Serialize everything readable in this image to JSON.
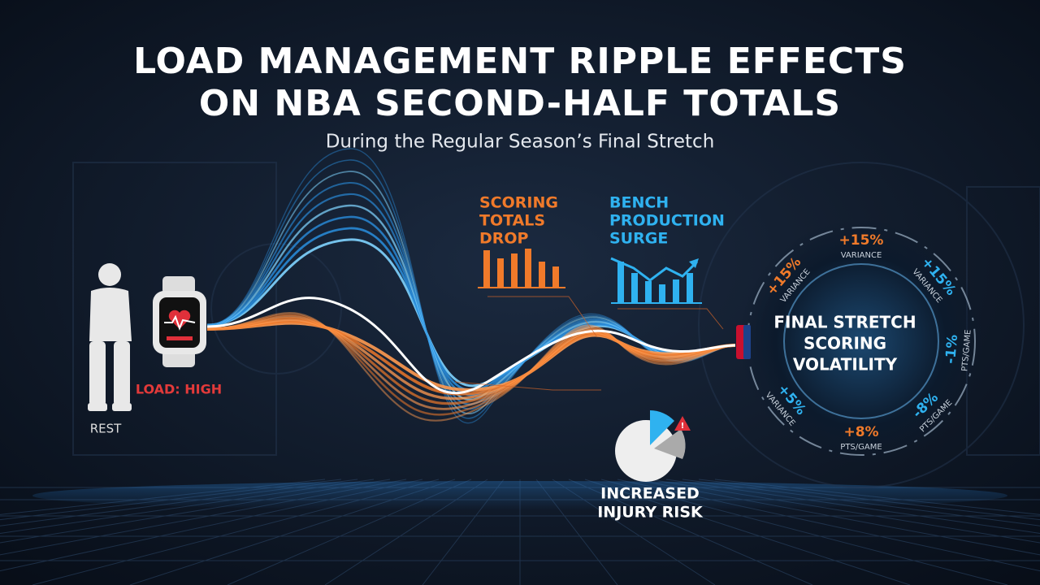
{
  "header": {
    "title_lines": [
      "LOAD MANAGEMENT RIPPLE EFFECTS",
      "ON NBA SECOND-HALF TOTALS"
    ],
    "subtitle": "During the Regular Season’s Final Stretch"
  },
  "left": {
    "rest_label": "REST",
    "load_label": "LOAD: HIGH"
  },
  "callouts": {
    "scoring": [
      "SCORING",
      "TOTALS",
      "DROP"
    ],
    "bench": [
      "BENCH",
      "PRODUCTION",
      "SURGE"
    ],
    "injury": [
      "INCREASED",
      "INJURY RISK"
    ]
  },
  "ring": {
    "center": [
      "FINAL STRETCH",
      "SCORING",
      "VOLATILITY"
    ],
    "metrics": [
      {
        "value": "+15%",
        "label": "VARIANCE"
      },
      {
        "value": "+15%",
        "label": "VARIANCE"
      },
      {
        "value": "-1%",
        "label": "PTS/GAME"
      },
      {
        "value": "-8%",
        "label": "PTS/GAME"
      },
      {
        "value": "+8%",
        "label": "PTS/GAME"
      },
      {
        "value": "+5%",
        "label": "VARIANCE"
      },
      {
        "value": "+15%",
        "label": "VARIANCE"
      }
    ]
  }
}
